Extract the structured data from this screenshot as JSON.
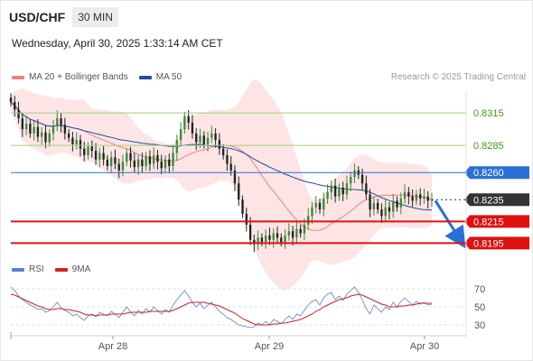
{
  "header": {
    "symbol": "USD/CHF",
    "timeframe": "30 MIN",
    "datetime": "Wednesday, April 30, 2025 1:33:14 AM CET"
  },
  "legend": {
    "ma20_label": "MA 20 + Bollinger Bands",
    "ma50_label": "MA 50",
    "credit": "Research © 2025 Trading Central"
  },
  "rsi_legend": {
    "rsi_label": "RSI",
    "ma_label": "9MA"
  },
  "colors": {
    "ma20": "#f08080",
    "ma50": "#1f4e99",
    "bollinger_fill": "#fde0e0",
    "resistance": "#9bd17a",
    "pivot": "#2a6fd6",
    "last_price": "#333333",
    "support": "#e01010",
    "rsi": "#5b7fd6",
    "rsi_ma": "#d62020",
    "candle_up": "#3a8a3a",
    "candle_down": "#222222"
  },
  "chart_data": [
    {
      "type": "candlestick",
      "title": "",
      "x_ticks": [
        "Apr 28",
        "Apr 29",
        "Apr 30"
      ],
      "ylim": [
        0.8182,
        0.834
      ],
      "levels": [
        {
          "label": "0.8315",
          "value": 0.8315,
          "kind": "resistance"
        },
        {
          "label": "0.8285",
          "value": 0.8285,
          "kind": "resistance"
        },
        {
          "label": "0.8260",
          "value": 0.826,
          "kind": "pivot"
        },
        {
          "label": "0.8235",
          "value": 0.8235,
          "kind": "last"
        },
        {
          "label": "0.8215",
          "value": 0.8215,
          "kind": "support"
        },
        {
          "label": "0.8195",
          "value": 0.8195,
          "kind": "support"
        }
      ],
      "forecast_arrow": {
        "from": 0.8234,
        "to": 0.8196
      },
      "close": [
        0.8325,
        0.8318,
        0.831,
        0.83,
        0.8305,
        0.8296,
        0.8302,
        0.8293,
        0.8297,
        0.8288,
        0.8296,
        0.8303,
        0.831,
        0.8304,
        0.8296,
        0.8292,
        0.8286,
        0.829,
        0.8282,
        0.8276,
        0.8284,
        0.828,
        0.8272,
        0.8278,
        0.8272,
        0.8266,
        0.8274,
        0.8268,
        0.8262,
        0.827,
        0.8278,
        0.8271,
        0.8265,
        0.8272,
        0.8266,
        0.8275,
        0.8268,
        0.8276,
        0.827,
        0.8264,
        0.8272,
        0.8266,
        0.8278,
        0.829,
        0.83,
        0.8312,
        0.8306,
        0.8296,
        0.8288,
        0.8294,
        0.8286,
        0.8292,
        0.8296,
        0.829,
        0.8282,
        0.8276,
        0.8268,
        0.8262,
        0.825,
        0.8235,
        0.8222,
        0.8212,
        0.8198,
        0.8194,
        0.82,
        0.8196,
        0.8202,
        0.8198,
        0.8204,
        0.82,
        0.8196,
        0.8202,
        0.8206,
        0.82,
        0.8208,
        0.8204,
        0.8212,
        0.822,
        0.8228,
        0.8232,
        0.8226,
        0.8236,
        0.8242,
        0.8248,
        0.8238,
        0.8246,
        0.824,
        0.825,
        0.8256,
        0.8262,
        0.8258,
        0.825,
        0.824,
        0.8226,
        0.8232,
        0.8226,
        0.822,
        0.8228,
        0.8224,
        0.8234,
        0.8228,
        0.8236,
        0.8242,
        0.8238,
        0.8234,
        0.824,
        0.8236,
        0.8238,
        0.8234,
        0.8235
      ]
    },
    {
      "type": "line",
      "title": "",
      "y_ticks": [
        70,
        50,
        30
      ],
      "ylim": [
        20,
        80
      ],
      "series": [
        {
          "name": "RSI",
          "values": [
            72,
            68,
            62,
            58,
            55,
            52,
            50,
            47,
            48,
            44,
            46,
            50,
            55,
            49,
            46,
            44,
            40,
            42,
            38,
            35,
            40,
            42,
            39,
            44,
            42,
            40,
            45,
            42,
            38,
            44,
            50,
            44,
            40,
            46,
            42,
            48,
            44,
            50,
            46,
            42,
            47,
            44,
            52,
            58,
            63,
            68,
            62,
            55,
            50,
            54,
            48,
            52,
            55,
            50,
            45,
            42,
            38,
            36,
            33,
            30,
            29,
            28,
            27,
            28,
            32,
            30,
            34,
            30,
            36,
            34,
            31,
            36,
            40,
            36,
            42,
            40,
            46,
            52,
            56,
            58,
            52,
            60,
            64,
            66,
            58,
            62,
            57,
            64,
            68,
            72,
            66,
            58,
            48,
            42,
            52,
            48,
            44,
            50,
            47,
            55,
            50,
            56,
            60,
            56,
            52,
            56,
            53,
            55,
            52,
            53
          ]
        },
        {
          "name": "9MA",
          "values": [
            64,
            63,
            61,
            59,
            57,
            55,
            53,
            51,
            50,
            48,
            47,
            47,
            48,
            48,
            47,
            47,
            46,
            45,
            44,
            42,
            41,
            41,
            40,
            41,
            41,
            41,
            42,
            42,
            42,
            42,
            43,
            44,
            44,
            44,
            44,
            44,
            45,
            45,
            45,
            45,
            45,
            45,
            46,
            48,
            50,
            52,
            54,
            55,
            55,
            55,
            55,
            54,
            53,
            52,
            51,
            49,
            47,
            45,
            43,
            40,
            37,
            35,
            33,
            31,
            30,
            30,
            30,
            30,
            31,
            31,
            32,
            32,
            33,
            34,
            35,
            36,
            38,
            40,
            42,
            45,
            47,
            50,
            52,
            54,
            56,
            58,
            59,
            60,
            62,
            63,
            64,
            63,
            61,
            59,
            57,
            55,
            53,
            52,
            50,
            50,
            50,
            51,
            51,
            52,
            52,
            53,
            54,
            54,
            54,
            54
          ]
        }
      ]
    }
  ]
}
